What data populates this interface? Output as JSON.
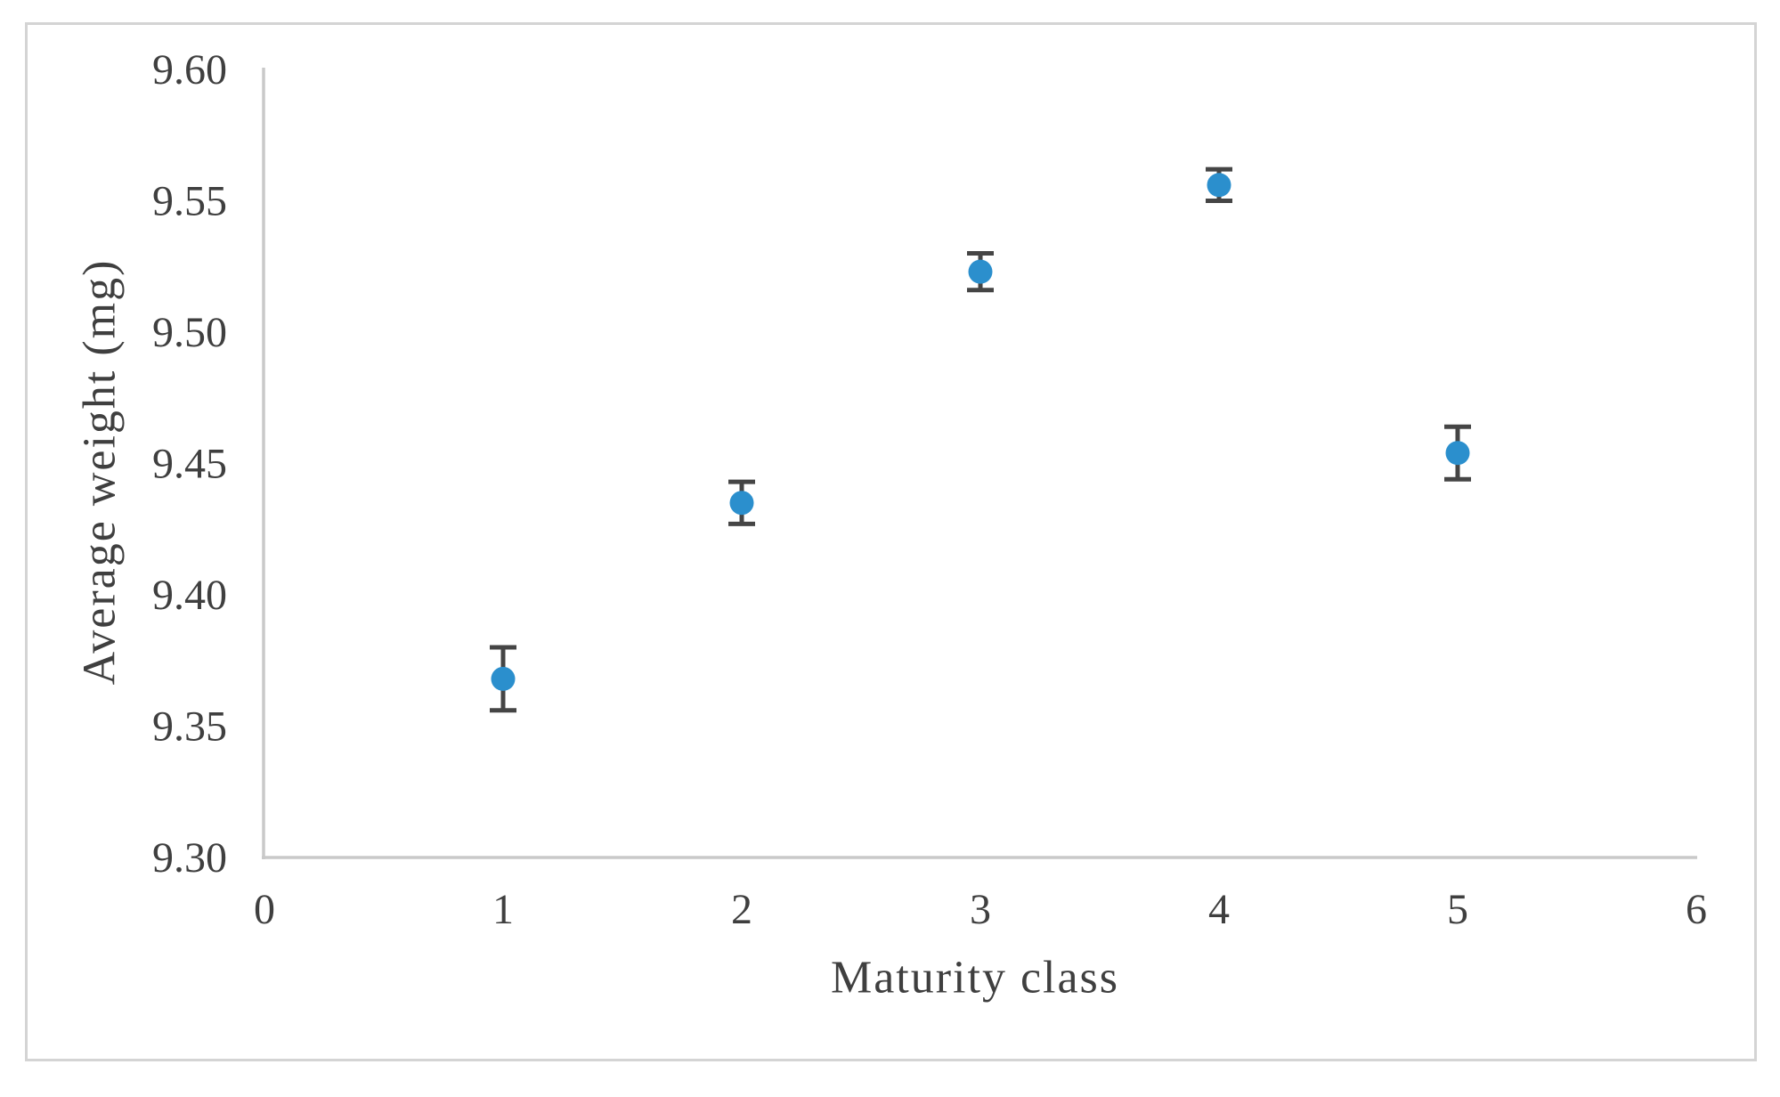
{
  "chart_data": {
    "type": "scatter",
    "title": "",
    "xlabel": "Maturity class",
    "ylabel": "Average weight (mg)",
    "x": [
      1,
      2,
      3,
      4,
      5
    ],
    "y": [
      9.368,
      9.435,
      9.523,
      9.556,
      9.454
    ],
    "y_error": [
      0.012,
      0.008,
      0.007,
      0.006,
      0.01
    ],
    "xlim": [
      0,
      6
    ],
    "ylim": [
      9.3,
      9.6
    ],
    "x_ticks": [
      "0",
      "1",
      "2",
      "3",
      "4",
      "5",
      "6"
    ],
    "y_ticks": [
      "9.30",
      "9.35",
      "9.40",
      "9.45",
      "9.50",
      "9.55",
      "9.60"
    ],
    "grid": false,
    "legend": false,
    "error_bars": "y-both-with-caps",
    "colors": {
      "marker": "#2b8fcd",
      "error_bar": "#454545",
      "axis_line": "#c9c9c9",
      "tick_text": "#3f3f3f",
      "frame_border": "#d4d4d4",
      "background": "#ffffff"
    }
  }
}
